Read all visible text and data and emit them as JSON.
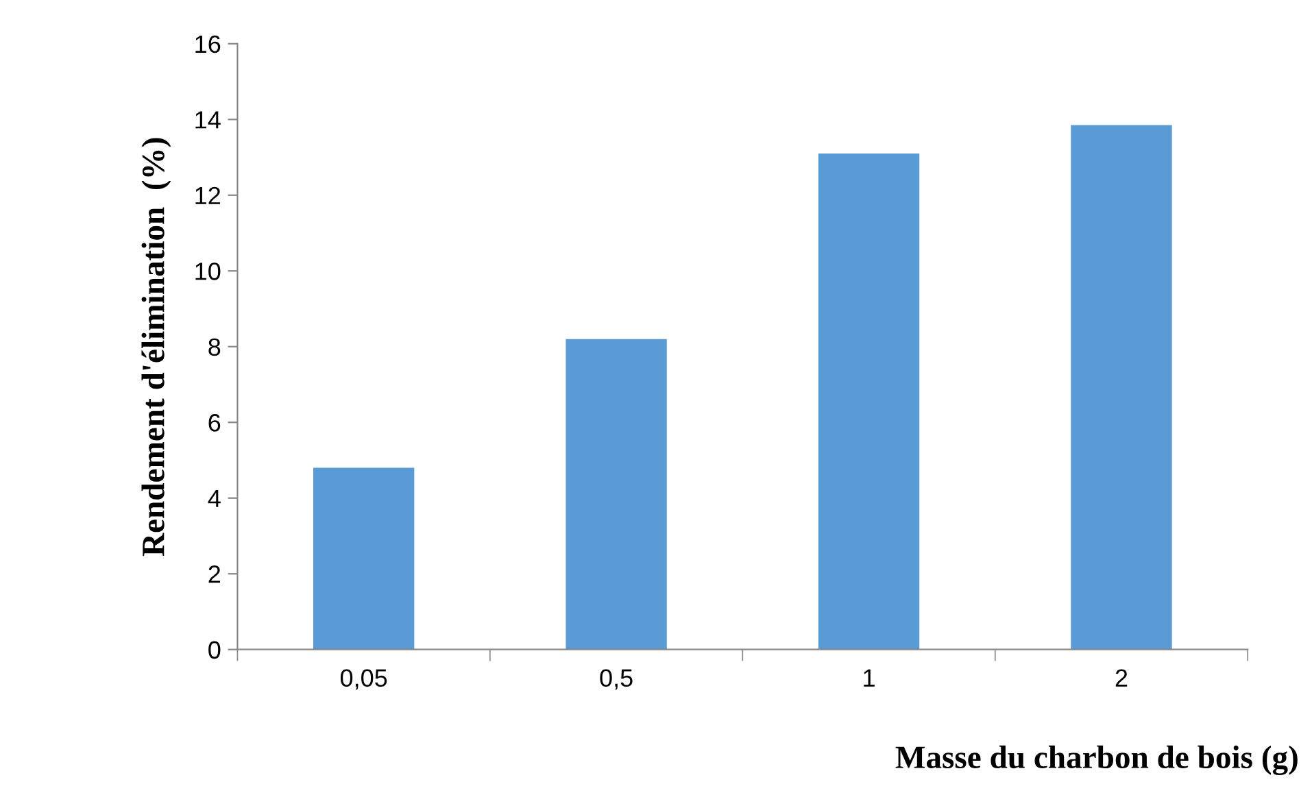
{
  "chart_data": {
    "type": "bar",
    "xlabel": "Masse du charbon de bois (g)",
    "ylabel": "Rendement d'élimination  (%)",
    "categories": [
      "0,05",
      "0,5",
      "1",
      "2"
    ],
    "values": [
      4.8,
      8.2,
      13.1,
      13.85
    ],
    "color": "#5b9bd5",
    "ylim": [
      0,
      16
    ],
    "yticks": [
      0,
      2,
      4,
      6,
      8,
      10,
      12,
      14,
      16
    ],
    "grid": false
  }
}
